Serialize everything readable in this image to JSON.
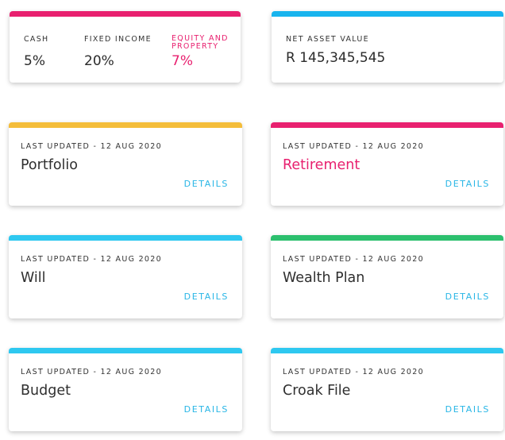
{
  "colors": {
    "pink": "#e8206f",
    "blue": "#18b4ee",
    "yellow": "#f4bd3a",
    "sky": "#2ec8f0",
    "green": "#2cc06e",
    "details": "#29b6e6"
  },
  "allocation": {
    "cash_label": "CASH",
    "cash_value": "5%",
    "fixed_label": "FIXED INCOME",
    "fixed_value": "20%",
    "equity_label": "EQUITY AND PROPERTY",
    "equity_value": "7%"
  },
  "nav": {
    "label": "NET ASSET VALUE",
    "value": "R 145,345,545"
  },
  "cards": [
    {
      "updated": "LAST UPDATED - 12 AUG 2020",
      "title": "Portfolio",
      "details": "DETAILS"
    },
    {
      "updated": "LAST UPDATED - 12 AUG 2020",
      "title": "Retirement",
      "details": "DETAILS"
    },
    {
      "updated": "LAST UPDATED - 12 AUG 2020",
      "title": "Will",
      "details": "DETAILS"
    },
    {
      "updated": "LAST UPDATED - 12 AUG 2020",
      "title": "Wealth Plan",
      "details": "DETAILS"
    },
    {
      "updated": "LAST UPDATED - 12 AUG 2020",
      "title": "Budget",
      "details": "DETAILS"
    },
    {
      "updated": "LAST UPDATED - 12 AUG 2020",
      "title": "Croak File",
      "details": "DETAILS"
    }
  ]
}
